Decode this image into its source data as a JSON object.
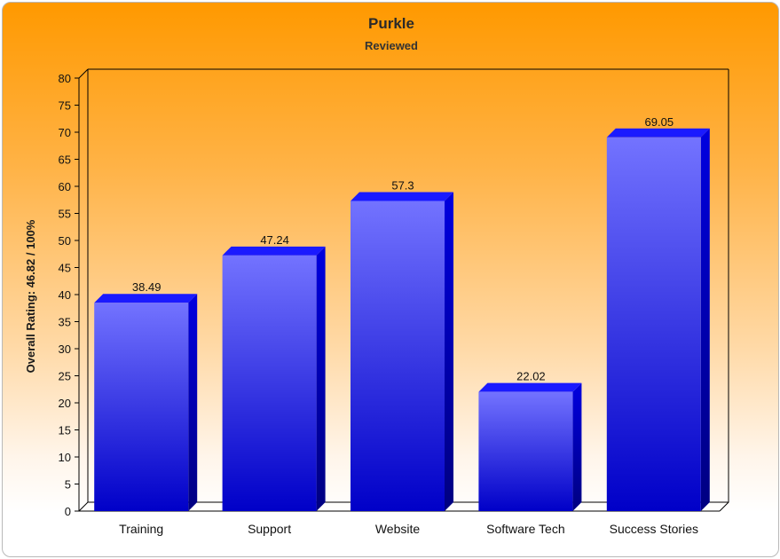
{
  "chart_data": {
    "type": "bar",
    "title": "Purkle",
    "subtitle": "Reviewed",
    "xlabel": "",
    "ylabel": "Overall Rating: 46.82 / 100%",
    "categories": [
      "Training",
      "Support",
      "Website",
      "Software Tech",
      "Success Stories"
    ],
    "values": [
      38.49,
      47.24,
      57.3,
      22.02,
      69.05
    ],
    "value_labels": [
      "38.49",
      "47.24",
      "57.3",
      "22.02",
      "69.05"
    ],
    "ylim": [
      0,
      80
    ],
    "yticks": [
      "0",
      "5",
      "10",
      "15",
      "20",
      "25",
      "30",
      "35",
      "40",
      "45",
      "50",
      "55",
      "60",
      "65",
      "70",
      "75",
      "80"
    ],
    "grid": false,
    "legend": "none",
    "colors": {
      "bar_top": "#7373ff",
      "bar_bottom": "#0000c8",
      "bar_side": "#0000a8",
      "bar_cap": "#1a1aff",
      "background_top": "#ff9900",
      "background_bottom": "#ffffff"
    }
  }
}
